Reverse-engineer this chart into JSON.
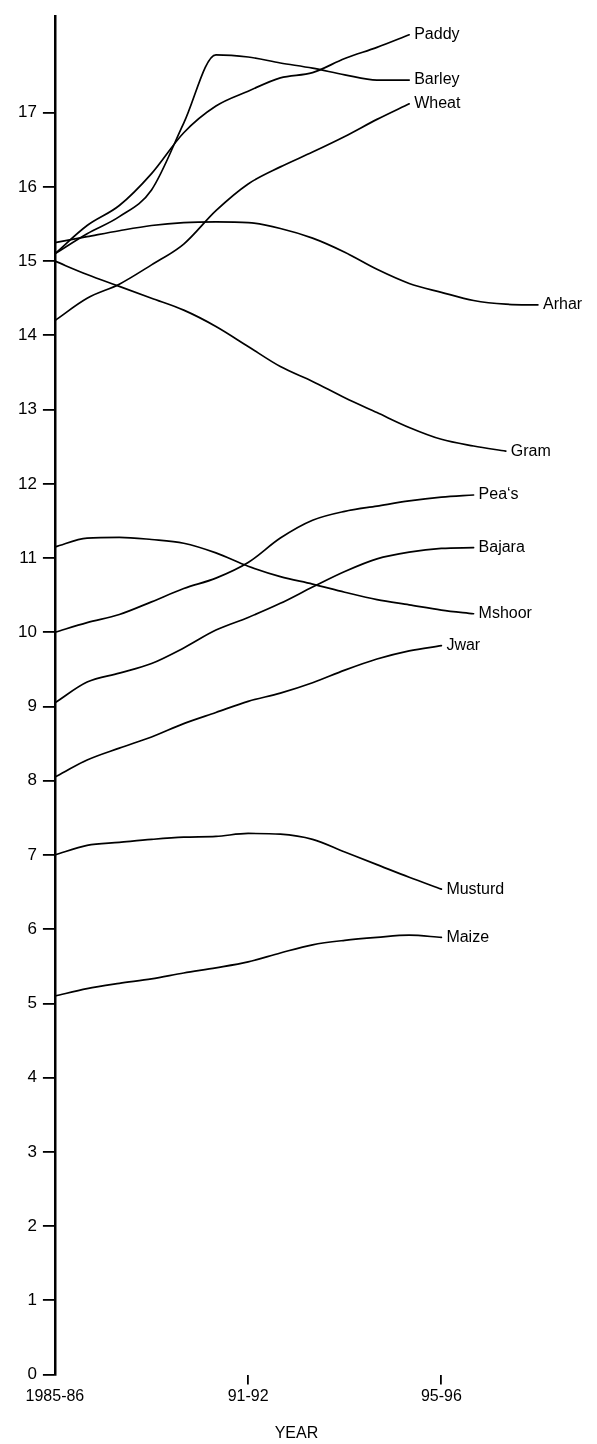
{
  "chart_data": {
    "type": "line",
    "xlabel": "YEAR",
    "categories": [
      "1985-86",
      null,
      null,
      null,
      null,
      null,
      "91-92",
      null,
      null,
      null,
      null,
      null,
      "95-96",
      null,
      null,
      null
    ],
    "ylim": [
      0,
      18.3
    ],
    "yticks": [
      0,
      1,
      2,
      3,
      4,
      5,
      6,
      7,
      8,
      9,
      10,
      11,
      12,
      13,
      14,
      15,
      16,
      17
    ],
    "marker": "none",
    "line_style": "solid",
    "series": [
      {
        "name": "Paddy",
        "color": "#000000",
        "values": [
          15.1,
          15.48,
          15.75,
          16.18,
          16.73,
          17.09,
          17.29,
          17.47,
          17.54,
          17.73,
          17.88,
          18.05,
          null,
          null,
          null,
          null
        ]
      },
      {
        "name": "Barley",
        "color": "#000000",
        "values": [
          15.1,
          15.37,
          15.6,
          15.96,
          16.86,
          17.78,
          17.75,
          17.67,
          17.6,
          17.51,
          17.44,
          17.44,
          null,
          null,
          null,
          null
        ]
      },
      {
        "name": "Wheat",
        "color": "#000000",
        "values": [
          14.2,
          14.5,
          14.69,
          14.95,
          15.23,
          15.68,
          16.04,
          16.27,
          16.47,
          16.68,
          16.91,
          17.12,
          null,
          null,
          null,
          null
        ]
      },
      {
        "name": "Arhar",
        "color": "#000000",
        "values": [
          15.25,
          15.33,
          15.41,
          15.48,
          15.52,
          15.53,
          15.52,
          15.44,
          15.31,
          15.12,
          14.89,
          14.7,
          14.58,
          14.47,
          14.42,
          14.41
        ]
      },
      {
        "name": "Gram",
        "color": "#000000",
        "values": [
          15.0,
          14.82,
          14.66,
          14.5,
          14.34,
          14.12,
          13.85,
          13.58,
          13.38,
          13.16,
          12.96,
          12.76,
          12.6,
          12.51,
          12.44,
          null
        ]
      },
      {
        "name": "Pea‘s",
        "color": "#000000",
        "values": [
          10.0,
          10.13,
          10.24,
          10.41,
          10.59,
          10.73,
          10.94,
          11.27,
          11.51,
          11.63,
          11.7,
          11.77,
          11.82,
          11.85,
          null,
          null
        ]
      },
      {
        "name": "Bajara",
        "color": "#000000",
        "values": [
          9.05,
          9.33,
          9.45,
          9.58,
          9.79,
          10.03,
          10.2,
          10.39,
          10.61,
          10.82,
          10.99,
          11.08,
          11.13,
          11.14,
          null,
          null
        ]
      },
      {
        "name": "Mshoor",
        "color": "#000000",
        "values": [
          11.15,
          11.27,
          11.28,
          11.25,
          11.2,
          11.07,
          10.89,
          10.75,
          10.65,
          10.54,
          10.44,
          10.37,
          10.3,
          10.25,
          null,
          null
        ]
      },
      {
        "name": "Jwar",
        "color": "#000000",
        "values": [
          8.05,
          8.28,
          8.44,
          8.59,
          8.77,
          8.92,
          9.07,
          9.18,
          9.32,
          9.49,
          9.64,
          9.75,
          9.82,
          null,
          null,
          null
        ]
      },
      {
        "name": "Musturd",
        "color": "#000000",
        "values": [
          7.0,
          7.13,
          7.17,
          7.21,
          7.24,
          7.25,
          7.29,
          7.28,
          7.21,
          7.04,
          6.87,
          6.7,
          6.54,
          null,
          null,
          null
        ]
      },
      {
        "name": "Maize",
        "color": "#000000",
        "values": [
          5.1,
          5.2,
          5.27,
          5.33,
          5.41,
          5.48,
          5.56,
          5.68,
          5.79,
          5.85,
          5.89,
          5.92,
          5.89,
          null,
          null,
          null
        ]
      }
    ]
  }
}
